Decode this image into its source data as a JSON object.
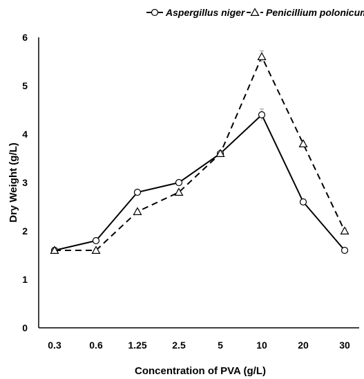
{
  "chart_data": {
    "type": "line",
    "categories": [
      "0.3",
      "0.6",
      "1.25",
      "2.5",
      "5",
      "10",
      "20",
      "30"
    ],
    "xlabel": "Concentration of PVA (g/L)",
    "ylabel": "Dry Weight (g/L)",
    "ylim": [
      0,
      6
    ],
    "yticks": [
      "0",
      "1",
      "2",
      "3",
      "4",
      "5",
      "6"
    ],
    "grid": false,
    "legend": "top",
    "series": [
      {
        "name": "Aspergillus niger",
        "values": [
          1.6,
          1.8,
          2.8,
          3.0,
          3.6,
          4.4,
          2.6,
          1.6
        ],
        "errors": [
          0.03,
          0.03,
          0.05,
          0.05,
          0.05,
          0.12,
          0.05,
          0.03
        ],
        "marker": "circle",
        "line_style": "solid",
        "color": "#000000"
      },
      {
        "name": "Penicillium polonicum",
        "values": [
          1.6,
          1.6,
          2.4,
          2.8,
          3.6,
          5.6,
          3.8,
          2.0
        ],
        "errors": [
          0.03,
          0.03,
          0.05,
          0.05,
          0.05,
          0.12,
          0.05,
          0.05
        ],
        "marker": "triangle",
        "line_style": "dashed",
        "color": "#000000"
      }
    ]
  }
}
